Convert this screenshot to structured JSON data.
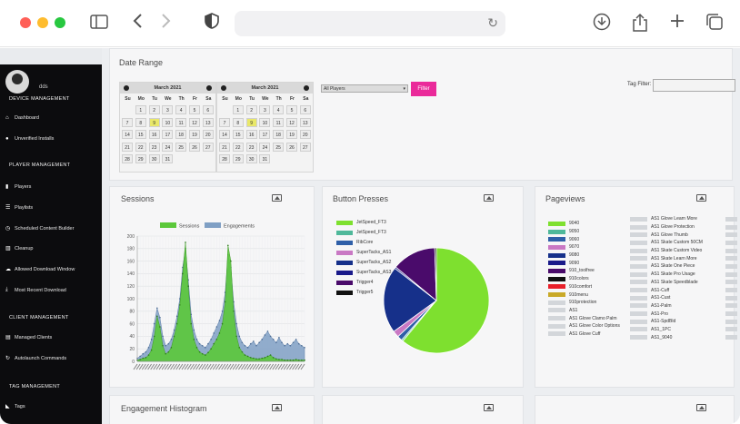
{
  "sidebar": {
    "username": "dds",
    "sections": [
      {
        "title": "DEVICE MANAGEMENT",
        "items": [
          {
            "icon": "home-icon",
            "glyph": "⌂",
            "label": "Dashboard"
          },
          {
            "icon": "info-icon",
            "glyph": "●",
            "label": "Unverified Installs"
          }
        ]
      },
      {
        "title": "PLAYER MANAGEMENT",
        "items": [
          {
            "icon": "player-icon",
            "glyph": "▮",
            "label": "Players"
          },
          {
            "icon": "list-icon",
            "glyph": "☰",
            "label": "Playlists"
          },
          {
            "icon": "clock-icon",
            "glyph": "◷",
            "label": "Scheduled Content Builder"
          },
          {
            "icon": "trash-icon",
            "glyph": "▥",
            "label": "Cleanup"
          },
          {
            "icon": "cloud-icon",
            "glyph": "☁",
            "label": "Allowed Download Window"
          },
          {
            "icon": "download-icon",
            "glyph": "⤓",
            "label": "Most Recent Download"
          }
        ]
      },
      {
        "title": "CLIENT MANAGEMENT",
        "items": [
          {
            "icon": "clients-icon",
            "glyph": "▤",
            "label": "Managed Clients"
          },
          {
            "icon": "launch-icon",
            "glyph": "↻",
            "label": "Autolaunch Commands"
          }
        ]
      },
      {
        "title": "TAG MANAGEMENT",
        "items": [
          {
            "icon": "tag-icon",
            "glyph": "◣",
            "label": "Tags"
          }
        ]
      }
    ]
  },
  "filters": {
    "date_range_title": "Date Range",
    "calendars": [
      {
        "month": "March 2021",
        "rows": [
          [
            "",
            "1",
            "2",
            "3",
            "4",
            "5",
            "6"
          ],
          [
            "7",
            "8",
            "9",
            "10",
            "11",
            "12",
            "13"
          ],
          [
            "14",
            "15",
            "16",
            "17",
            "18",
            "19",
            "20"
          ],
          [
            "21",
            "22",
            "23",
            "24",
            "25",
            "26",
            "27"
          ],
          [
            "28",
            "29",
            "30",
            "31",
            "",
            "",
            ""
          ]
        ],
        "selected": "9"
      },
      {
        "month": "March 2021",
        "rows": [
          [
            "",
            "1",
            "2",
            "3",
            "4",
            "5",
            "6"
          ],
          [
            "7",
            "8",
            "9",
            "10",
            "11",
            "12",
            "13"
          ],
          [
            "14",
            "15",
            "16",
            "17",
            "18",
            "19",
            "20"
          ],
          [
            "21",
            "22",
            "23",
            "24",
            "25",
            "26",
            "27"
          ],
          [
            "28",
            "29",
            "30",
            "31",
            "",
            "",
            ""
          ]
        ],
        "selected": "9"
      }
    ],
    "weekdays": [
      "Su",
      "Mo",
      "Tu",
      "We",
      "Th",
      "Fr",
      "Sa"
    ],
    "player_select": "All Players",
    "filter_button": "Filter",
    "tag_filter_label": "Tag Filter:",
    "tag_filter_value": ""
  },
  "panels": {
    "sessions_title": "Sessions",
    "button_presses_title": "Button Presses",
    "pageviews_title": "Pageviews",
    "engagement_histogram_title": "Engagement Histogram"
  },
  "colors": {
    "sessions": "#5bc83a",
    "engagements": "#7f9fc4",
    "accent": "#ea2a9a",
    "sidebar": "#0c0c0e"
  },
  "chart_data": [
    {
      "type": "area",
      "legend": [
        "Sessions",
        "Engagements"
      ],
      "ylim": [
        0,
        200
      ],
      "yticks": [
        0,
        20,
        40,
        60,
        80,
        100,
        120,
        140,
        160,
        180,
        200
      ],
      "series": [
        {
          "name": "Sessions",
          "values": [
            2,
            3,
            5,
            6,
            10,
            18,
            40,
            72,
            55,
            25,
            12,
            15,
            22,
            40,
            60,
            90,
            140,
            190,
            120,
            60,
            35,
            22,
            15,
            12,
            10,
            14,
            20,
            28,
            35,
            45,
            60,
            95,
            185,
            160,
            80,
            40,
            22,
            15,
            10,
            8,
            6,
            5,
            4,
            4,
            5,
            6,
            8,
            10,
            6,
            4,
            3,
            3,
            2,
            2,
            2,
            2,
            3,
            2,
            2,
            2
          ]
        },
        {
          "name": "Engagements",
          "values": [
            5,
            8,
            12,
            15,
            22,
            35,
            60,
            85,
            70,
            40,
            25,
            28,
            35,
            50,
            72,
            100,
            150,
            180,
            130,
            75,
            50,
            35,
            28,
            25,
            22,
            28,
            35,
            45,
            55,
            65,
            80,
            110,
            170,
            150,
            95,
            60,
            40,
            30,
            25,
            22,
            28,
            32,
            25,
            30,
            35,
            42,
            48,
            40,
            35,
            30,
            38,
            30,
            25,
            28,
            25,
            30,
            35,
            28,
            25,
            22
          ]
        }
      ]
    },
    {
      "type": "pie",
      "legend": [
        "JetSpeed_FT3",
        "JetSpeed_FT3",
        "RibCore",
        "SuperTacks_AS1",
        "SuperTacks_AS2",
        "SuperTacks_AS3",
        "Trigger4",
        "Trigger5"
      ],
      "colors": [
        "#7ee02f",
        "#4fb89a",
        "#2f5fa8",
        "#c978c4",
        "#16308a",
        "#1a1a8a",
        "#4a0b6b",
        "#111111"
      ],
      "values": [
        61,
        0.5,
        1.5,
        2,
        20.5,
        0.5,
        13.5,
        0.5
      ]
    }
  ],
  "pageviews": {
    "col1": [
      {
        "label": "9040",
        "color": "#7ee02f"
      },
      {
        "label": "9050",
        "color": "#4fb89a"
      },
      {
        "label": "9060",
        "color": "#2f5fa8"
      },
      {
        "label": "9070",
        "color": "#c978c4"
      },
      {
        "label": "9080",
        "color": "#16308a"
      },
      {
        "label": "9090",
        "color": "#1a1a8a"
      },
      {
        "label": "910_toolfree",
        "color": "#4a0b6b"
      },
      {
        "label": "910colors",
        "color": "#111111"
      },
      {
        "label": "910comfort",
        "color": "#e8202a"
      },
      {
        "label": "910menu",
        "color": "#c9a928"
      },
      {
        "label": "910protection",
        "color": "#d3d6da"
      },
      {
        "label": "AS1",
        "color": "#d3d6da"
      },
      {
        "label": "AS1 Glove Clamo Palm",
        "color": "#d3d6da"
      },
      {
        "label": "AS1 Glove Color Options",
        "color": "#d3d6da"
      },
      {
        "label": "AS1 Glove Cuff",
        "color": "#d3d6da"
      }
    ],
    "col2": [
      "AS1 Glove Learn More",
      "AS1 Glove Protection",
      "AS1 Glove Thumb",
      "AS1 Skate Custom 50CM",
      "AS1 Skate Custom Video",
      "AS1 Skate Learn More",
      "AS1 Skate One Piece",
      "AS1 Skate Pro Usage",
      "AS1 Skate Speedblade",
      "AS1-Cuff",
      "AS1-Cust",
      "AS1-Palm",
      "AS1-Pro",
      "AS1-SpdBld",
      "AS1_1PC",
      "AS1_9040"
    ]
  }
}
